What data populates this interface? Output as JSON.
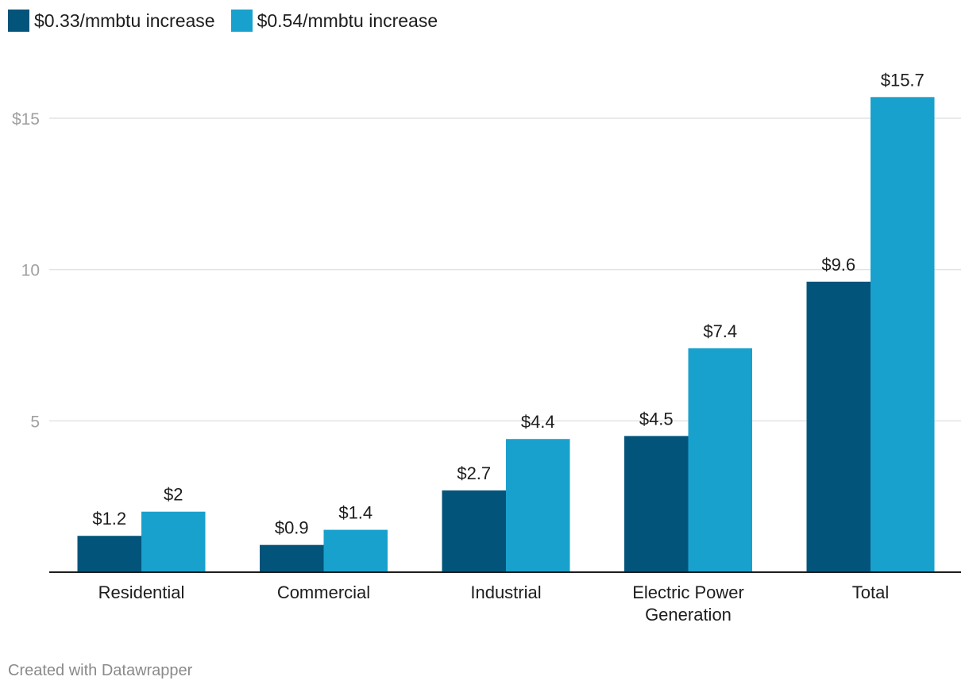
{
  "chart_data": {
    "type": "bar",
    "title": "",
    "xlabel": "",
    "ylabel": "",
    "categories": [
      [
        "Residential"
      ],
      [
        "Commercial"
      ],
      [
        "Industrial"
      ],
      [
        "Electric Power",
        "Generation"
      ],
      [
        "Total"
      ]
    ],
    "series": [
      {
        "name": "$0.33/mmbtu increase",
        "color": "#03547a",
        "values": [
          1.2,
          0.9,
          2.7,
          4.5,
          9.6
        ],
        "labels": [
          "$1.2",
          "$0.9",
          "$2.7",
          "$4.5",
          "$9.6"
        ]
      },
      {
        "name": "$0.54/mmbtu increase",
        "color": "#19a1cd",
        "values": [
          2,
          1.4,
          4.4,
          7.4,
          15.7
        ],
        "labels": [
          "$2",
          "$1.4",
          "$4.4",
          "$7.4",
          "$15.7"
        ]
      }
    ],
    "ylim": [
      0,
      15
    ],
    "yticks": [
      {
        "value": 5,
        "label": "5"
      },
      {
        "value": 10,
        "label": "10"
      },
      {
        "value": 15,
        "label": "$15"
      }
    ],
    "grid": true,
    "legend": "top-left"
  },
  "footer": {
    "credit": "Created with Datawrapper"
  }
}
